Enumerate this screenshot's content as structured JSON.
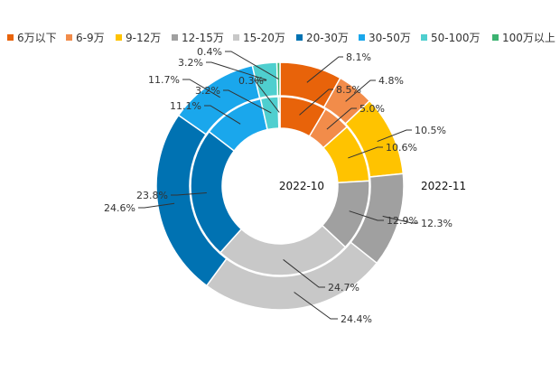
{
  "chart_data": {
    "type": "pie",
    "variant": "nested-donut",
    "categories": [
      "6万以下",
      "6-9万",
      "9-12万",
      "12-15万",
      "15-20万",
      "20-30万",
      "30-50万",
      "50-100万",
      "100万以上"
    ],
    "colors": [
      "#E8630A",
      "#F28C4A",
      "#FFC300",
      "#A0A0A0",
      "#C8C8C8",
      "#0072B2",
      "#1AA7EC",
      "#4FCFCF",
      "#3CB371"
    ],
    "series": [
      {
        "name": "2022-10",
        "ring": "inner",
        "values": [
          8.5,
          5.0,
          10.6,
          12.9,
          24.7,
          23.8,
          11.1,
          3.2,
          0.3
        ],
        "labels": [
          "8.5%",
          "5.0%",
          "10.6%",
          "12.9%",
          "24.7%",
          "23.8%",
          "11.1%",
          "3.2%",
          "0.3%"
        ]
      },
      {
        "name": "2022-11",
        "ring": "outer",
        "values": [
          8.1,
          4.8,
          10.5,
          12.3,
          24.4,
          24.6,
          11.7,
          3.2,
          0.4
        ],
        "labels": [
          "8.1%",
          "4.8%",
          "10.5%",
          "12.3%",
          "24.4%",
          "24.6%",
          "11.7%",
          "3.2%",
          "0.4%"
        ]
      }
    ],
    "legend_position": "top"
  }
}
